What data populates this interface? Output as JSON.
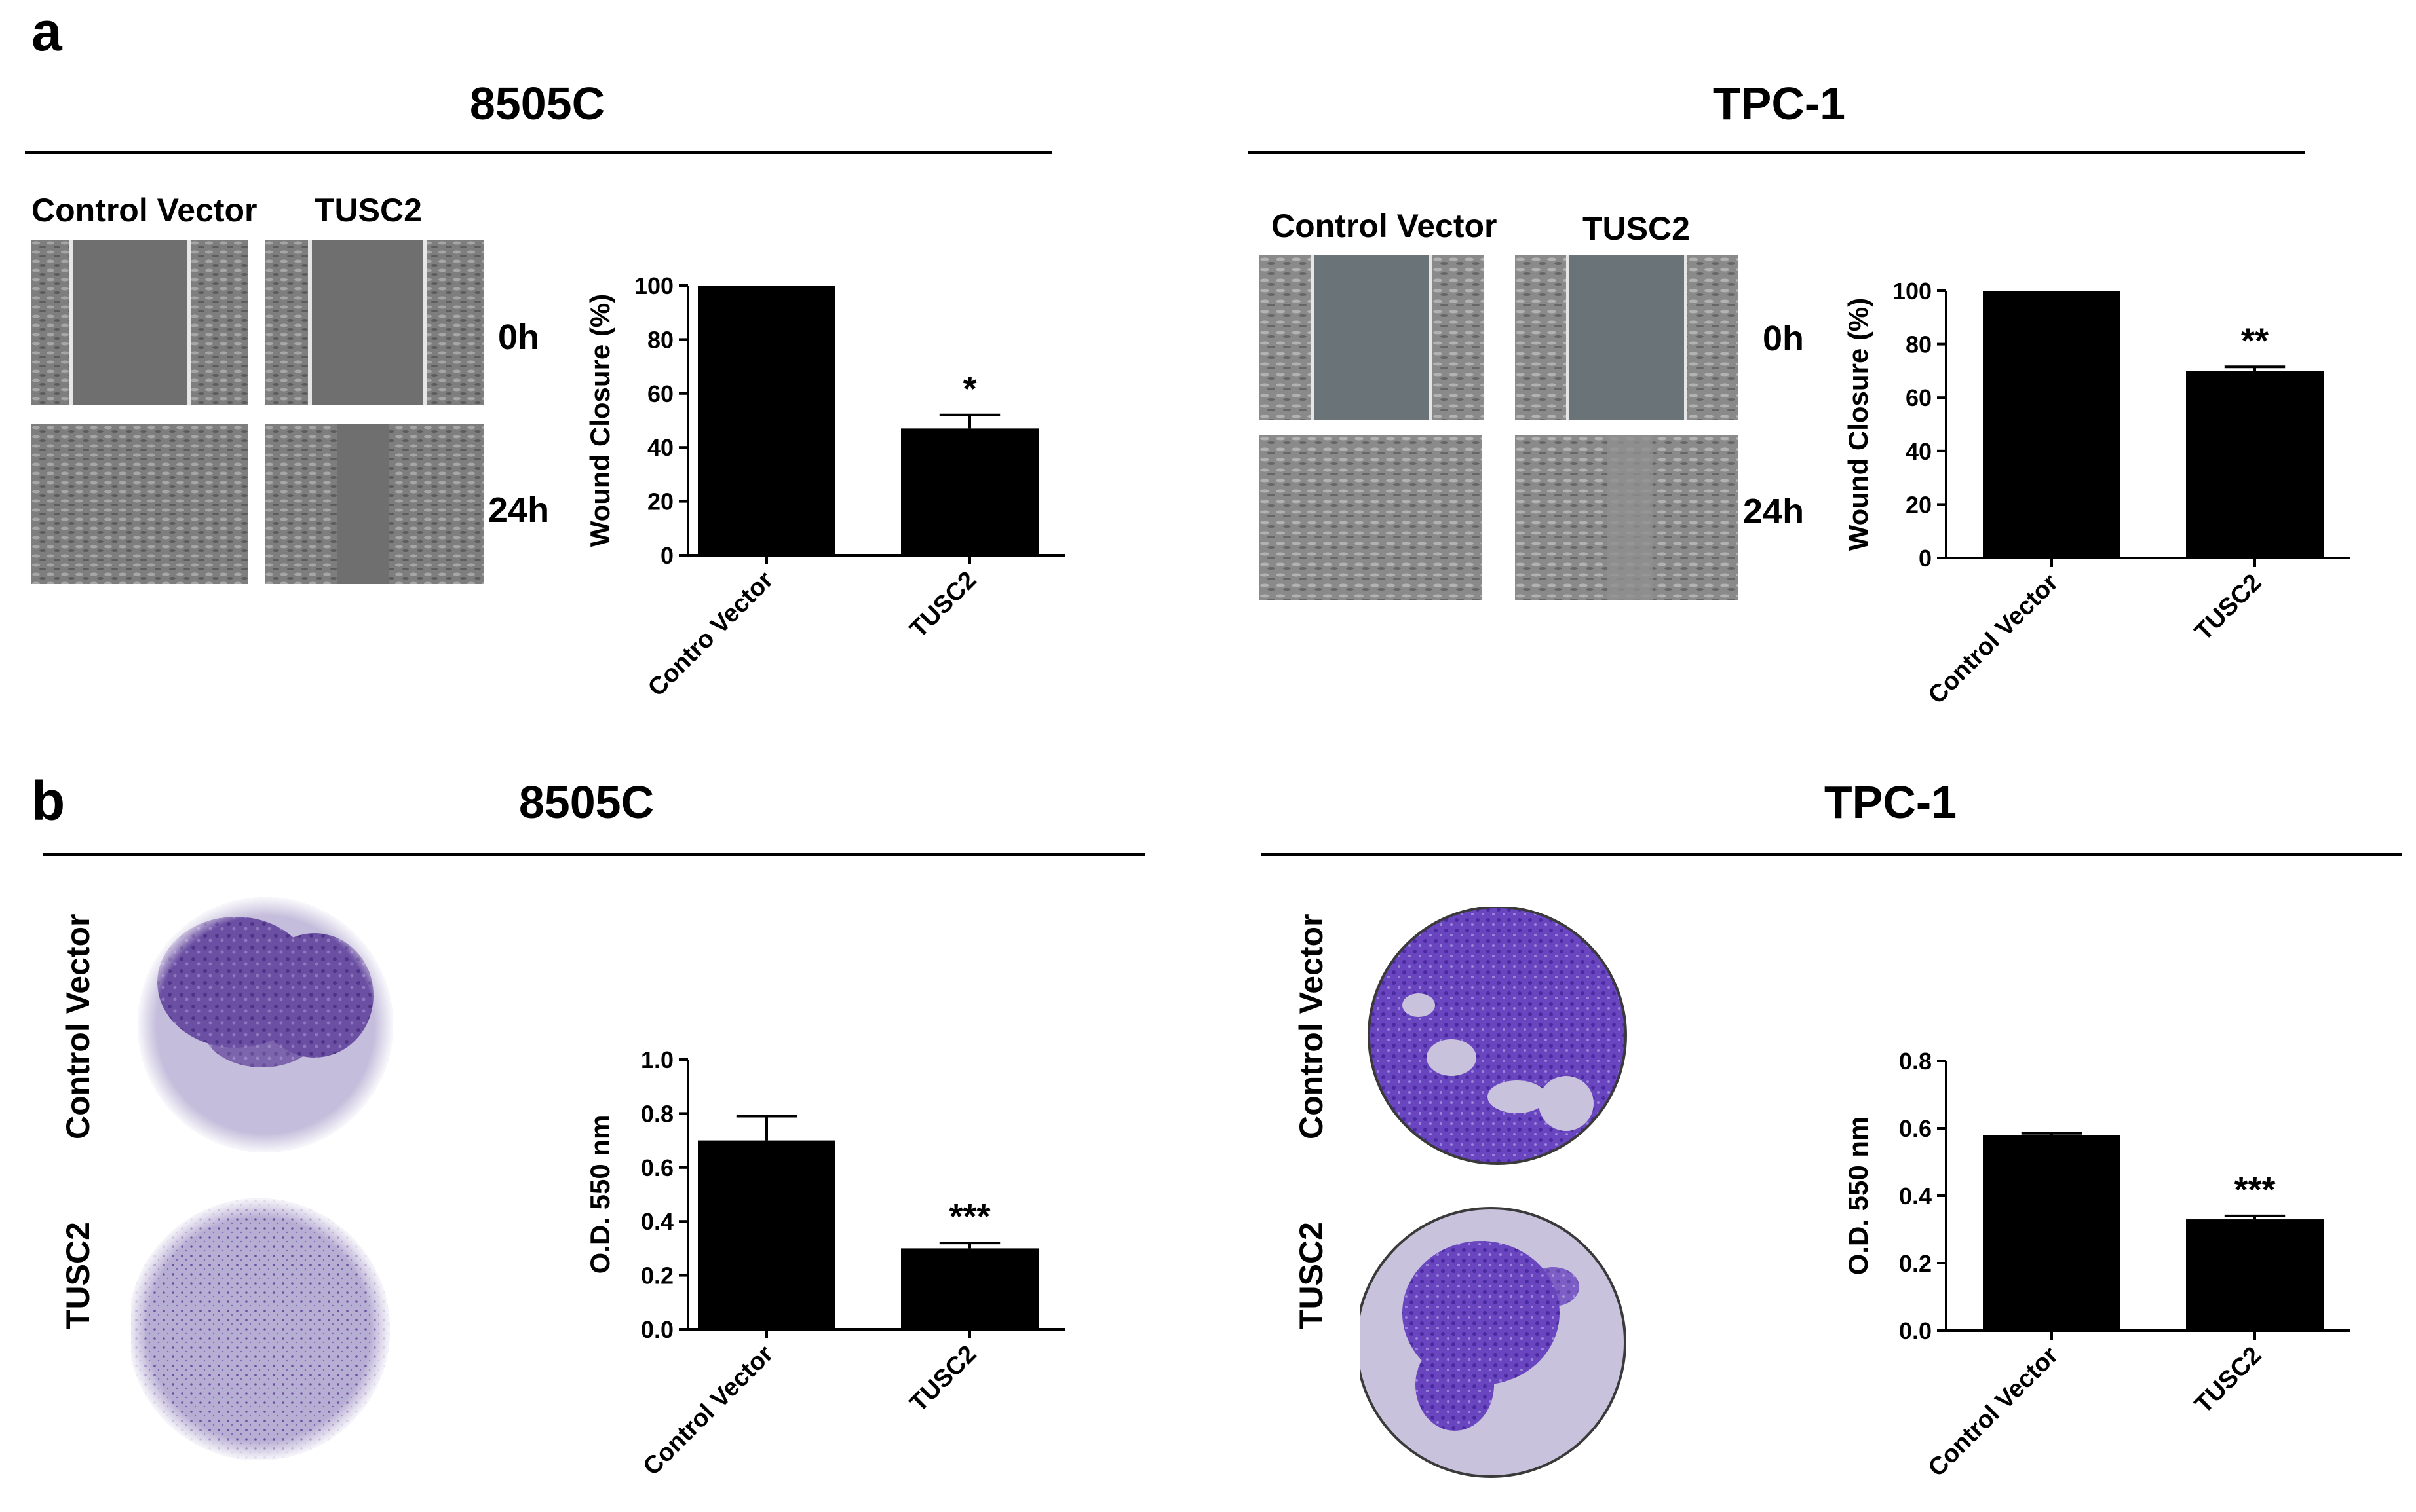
{
  "panel_a": {
    "letter": "a",
    "left": {
      "title": "8505C",
      "col_labels": [
        "Control Vector",
        "TUSC2"
      ],
      "row_labels": [
        "0h",
        "24h"
      ]
    },
    "right": {
      "title": "TPC-1",
      "col_labels": [
        "Control Vector",
        "TUSC2"
      ],
      "row_labels": [
        "0h",
        "24h"
      ]
    }
  },
  "panel_b": {
    "letter": "b",
    "left": {
      "title": "8505C",
      "row_labels": [
        "Control Vector",
        "TUSC2"
      ]
    },
    "right": {
      "title": "TPC-1",
      "row_labels": [
        "Control Vector",
        "TUSC2"
      ]
    }
  },
  "chart_data": [
    {
      "type": "bar",
      "categories": [
        "Contro Vector",
        "TUSC2"
      ],
      "values": [
        100,
        47
      ],
      "errors": [
        0,
        5
      ],
      "significance": [
        "",
        "*"
      ],
      "ylabel": "Wound Closure (%)",
      "ylim": [
        0,
        100
      ],
      "yticks": [
        "0",
        "20",
        "40",
        "60",
        "80",
        "100"
      ]
    },
    {
      "type": "bar",
      "categories": [
        "Control Vector",
        "TUSC2"
      ],
      "values": [
        100,
        70
      ],
      "errors": [
        0,
        1.5
      ],
      "significance": [
        "",
        "**"
      ],
      "ylabel": "Wound Closure (%)",
      "ylim": [
        0,
        100
      ],
      "yticks": [
        "0",
        "20",
        "40",
        "60",
        "80",
        "100"
      ]
    },
    {
      "type": "bar",
      "categories": [
        "Control Vector",
        "TUSC2"
      ],
      "values": [
        0.7,
        0.3
      ],
      "errors": [
        0.09,
        0.02
      ],
      "significance": [
        "",
        "***"
      ],
      "ylabel": "O.D. 550 nm",
      "ylim": [
        0,
        1.0
      ],
      "yticks": [
        "0.0",
        "0.2",
        "0.4",
        "0.6",
        "0.8",
        "1.0"
      ]
    },
    {
      "type": "bar",
      "categories": [
        "Control Vector",
        "TUSC2"
      ],
      "values": [
        0.58,
        0.33
      ],
      "errors": [
        0.005,
        0.01
      ],
      "significance": [
        "",
        "***"
      ],
      "ylabel": "O.D. 550 nm",
      "ylim": [
        0,
        0.8
      ],
      "yticks": [
        "0.0",
        "0.2",
        "0.4",
        "0.6",
        "0.8"
      ]
    }
  ]
}
